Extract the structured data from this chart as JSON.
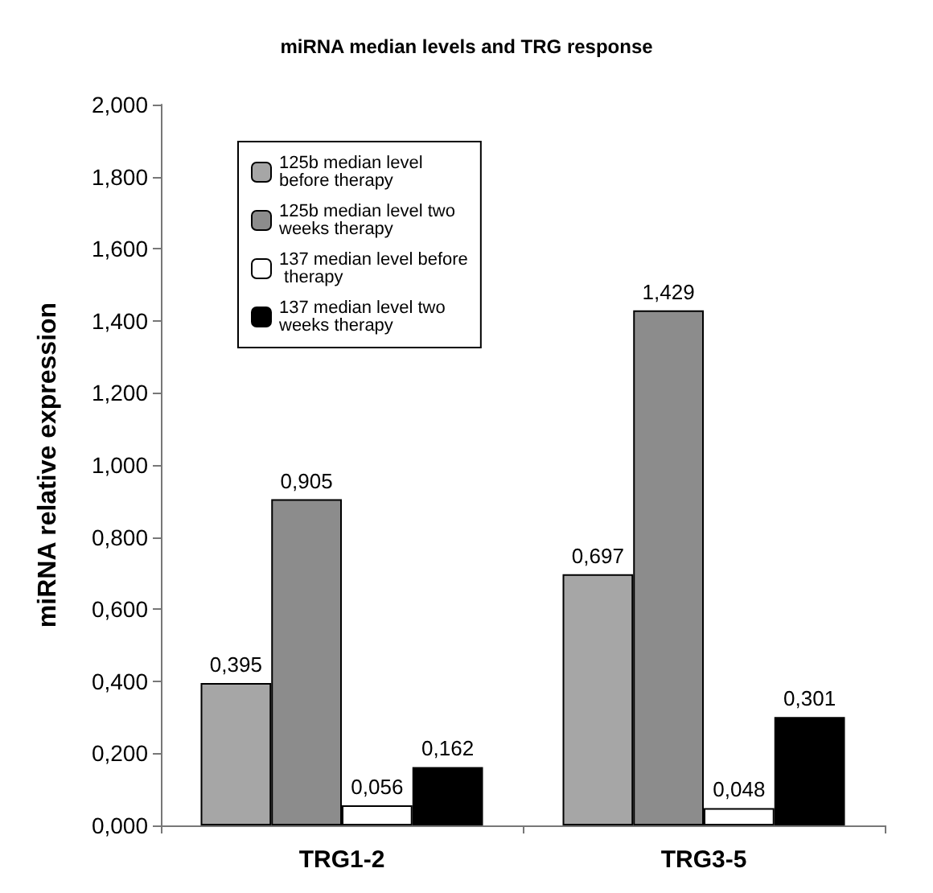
{
  "chart_data": {
    "type": "bar",
    "title": "miRNA median levels and TRG response",
    "ylabel": "miRNA relative expression",
    "categories": [
      "TRG1-2",
      "TRG3-5"
    ],
    "series": [
      {
        "name": "125b median level before therapy",
        "color": "#a6a6a6",
        "values": [
          0.395,
          0.697
        ],
        "value_labels": [
          "0,395",
          "0,697"
        ]
      },
      {
        "name": "125b median level two weeks therapy",
        "color": "#8c8c8c",
        "values": [
          0.905,
          1.429
        ],
        "value_labels": [
          "0,905",
          "1,429"
        ]
      },
      {
        "name": "137 median level before therapy",
        "color": "#ffffff",
        "values": [
          0.056,
          0.048
        ],
        "value_labels": [
          "0,056",
          "0,048"
        ]
      },
      {
        "name": "137 median level two weeks therapy",
        "color": "#000000",
        "values": [
          0.162,
          0.301
        ],
        "value_labels": [
          "0,162",
          "0,301"
        ]
      }
    ],
    "ylim": [
      0,
      2
    ],
    "yticks": [
      {
        "value": 0,
        "label": "0,000"
      },
      {
        "value": 0.2,
        "label": "0,200"
      },
      {
        "value": 0.4,
        "label": "0,400"
      },
      {
        "value": 0.6,
        "label": "0,600"
      },
      {
        "value": 0.8,
        "label": "0,800"
      },
      {
        "value": 1,
        "label": "1,000"
      },
      {
        "value": 1.2,
        "label": "1,200"
      },
      {
        "value": 1.4,
        "label": "1,400"
      },
      {
        "value": 1.6,
        "label": "1,600"
      },
      {
        "value": 1.8,
        "label": "1,800"
      },
      {
        "value": 2,
        "label": "2,000"
      }
    ],
    "grid": false,
    "legend": "top left"
  }
}
